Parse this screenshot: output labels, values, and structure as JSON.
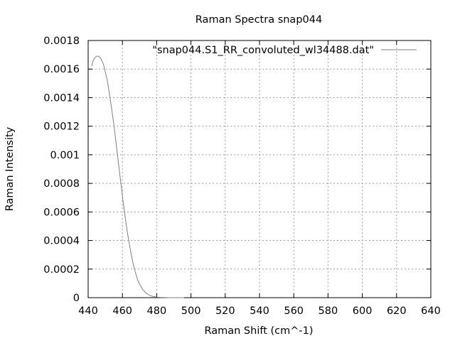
{
  "chart_data": {
    "type": "line",
    "title": "Raman Spectra snap044",
    "xlabel": "Raman Shift (cm^-1)",
    "ylabel": "Raman Intensity",
    "xlim": [
      440,
      640
    ],
    "ylim": [
      0,
      0.0018
    ],
    "grid": true,
    "legend_position": "top-right",
    "x_ticks": [
      "440",
      "460",
      "480",
      "500",
      "520",
      "540",
      "560",
      "580",
      "600",
      "620",
      "640"
    ],
    "y_ticks": [
      "0",
      "0.0002",
      "0.0004",
      "0.0006",
      "0.0008",
      "0.001",
      "0.0012",
      "0.0014",
      "0.0016",
      "0.0018"
    ],
    "line_color": "#808080",
    "series": [
      {
        "name": "\"snap044.S1_RR_convoluted_wl34488.dat\"",
        "x": [
          442,
          443,
          444,
          445,
          446,
          447,
          448,
          449,
          450,
          451,
          452,
          453,
          454,
          455,
          456,
          457,
          458,
          459,
          460,
          461,
          462,
          463,
          464,
          465,
          466,
          467,
          468,
          469,
          470,
          472,
          474,
          476,
          478,
          480,
          482,
          484,
          486,
          488,
          490,
          492,
          494,
          496
        ],
        "y": [
          0.00162,
          0.00166,
          0.00168,
          0.00169,
          0.00169,
          0.00168,
          0.00166,
          0.00163,
          0.00158,
          0.00153,
          0.00146,
          0.00138,
          0.0013,
          0.00121,
          0.00111,
          0.00101,
          0.00091,
          0.00081,
          0.00071,
          0.00062,
          0.00053,
          0.00045,
          0.00038,
          0.00031,
          0.00025,
          0.0002,
          0.00016,
          0.00012,
          9.5e-05,
          5.5e-05,
          3e-05,
          1.6e-05,
          8e-06,
          4e-06,
          2e-06,
          1e-06,
          5e-07,
          2e-07,
          1e-07,
          5e-08,
          2e-08,
          0.0
        ]
      }
    ]
  }
}
